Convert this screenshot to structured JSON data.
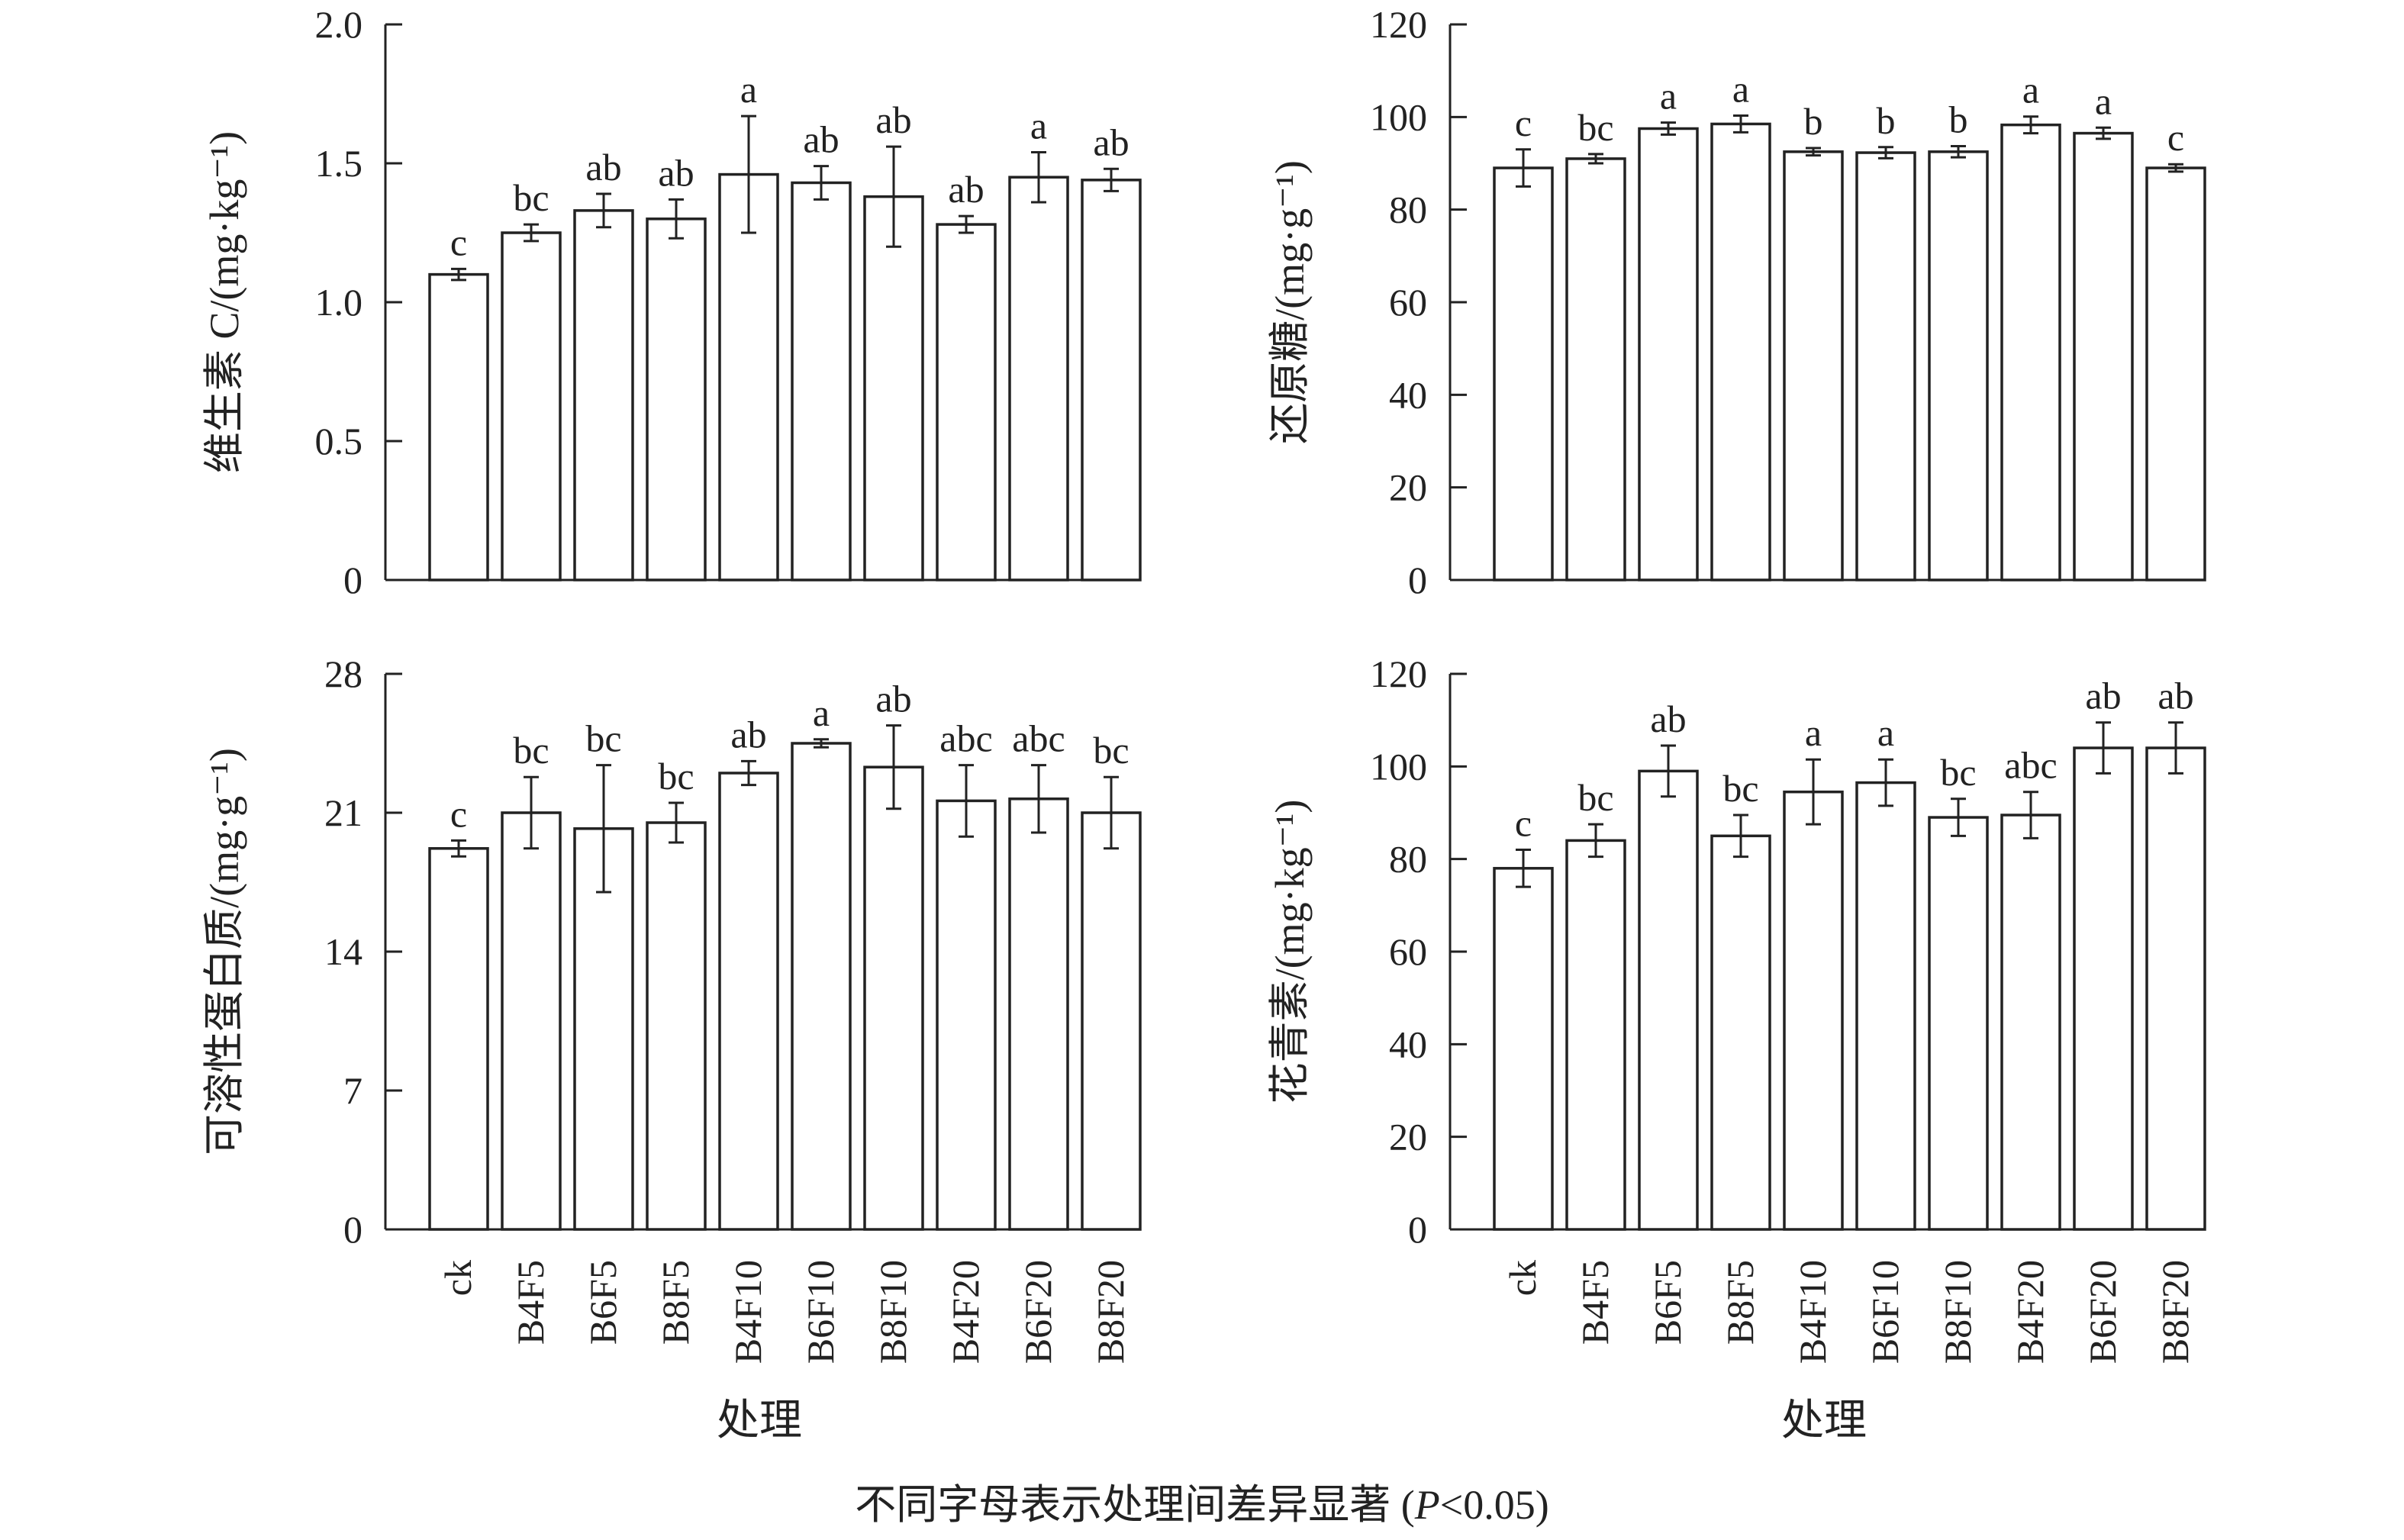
{
  "caption": "不同字母表示处理间差异显著 (P<0.05)",
  "chart_data": [
    {
      "type": "bar",
      "ylabel": "维生素 C/(mg·kg⁻¹)",
      "xlabel": "",
      "ylim": [
        0,
        2.0
      ],
      "yticks": [
        "0",
        "0.5",
        "1.0",
        "1.5",
        "2.0"
      ],
      "categories": [
        "ck",
        "B4F5",
        "B6F5",
        "B8F5",
        "B4F10",
        "B6F10",
        "B8F10",
        "B4F20",
        "B6F20",
        "B8F20"
      ],
      "values": [
        1.1,
        1.25,
        1.33,
        1.3,
        1.46,
        1.43,
        1.38,
        1.28,
        1.45,
        1.44
      ],
      "errors": [
        0.02,
        0.03,
        0.06,
        0.07,
        0.21,
        0.06,
        0.18,
        0.03,
        0.09,
        0.04
      ],
      "letters": [
        "c",
        "bc",
        "ab",
        "ab",
        "a",
        "ab",
        "ab",
        "ab",
        "a",
        "ab"
      ],
      "show_xticks": false
    },
    {
      "type": "bar",
      "ylabel": "还原糖/(mg·g⁻¹)",
      "xlabel": "",
      "ylim": [
        0,
        120
      ],
      "yticks": [
        "0",
        "20",
        "40",
        "60",
        "80",
        "100",
        "120"
      ],
      "categories": [
        "ck",
        "B4F5",
        "B6F5",
        "B8F5",
        "B4F10",
        "B6F10",
        "B8F10",
        "B4F20",
        "B6F20",
        "B8F20"
      ],
      "values": [
        89,
        91,
        97.5,
        98.5,
        92.5,
        92.3,
        92.5,
        98.3,
        96.5,
        89
      ],
      "errors": [
        4,
        1,
        1.3,
        1.8,
        0.8,
        1.2,
        1.2,
        1.8,
        1.2,
        0.8
      ],
      "letters": [
        "c",
        "bc",
        "a",
        "a",
        "b",
        "b",
        "b",
        "a",
        "a",
        "c"
      ],
      "show_xticks": false
    },
    {
      "type": "bar",
      "ylabel": "可溶性蛋白质/(mg·g⁻¹)",
      "xlabel": "处理",
      "ylim": [
        0,
        28
      ],
      "yticks": [
        "0",
        "7",
        "14",
        "21",
        "28"
      ],
      "categories": [
        "ck",
        "B4F5",
        "B6F5",
        "B8F5",
        "B4F10",
        "B6F10",
        "B8F10",
        "B4F20",
        "B6F20",
        "B8F20"
      ],
      "values": [
        19.2,
        21.0,
        20.2,
        20.5,
        23.0,
        24.5,
        23.3,
        21.6,
        21.7,
        21.0
      ],
      "errors": [
        0.4,
        1.8,
        3.2,
        1.0,
        0.6,
        0.2,
        2.1,
        1.8,
        1.7,
        1.8
      ],
      "letters": [
        "c",
        "bc",
        "bc",
        "bc",
        "ab",
        "a",
        "ab",
        "abc",
        "abc",
        "bc"
      ],
      "show_xticks": true
    },
    {
      "type": "bar",
      "ylabel": "花青素/(mg·kg⁻¹)",
      "xlabel": "处理",
      "ylim": [
        0,
        120
      ],
      "yticks": [
        "0",
        "20",
        "40",
        "60",
        "80",
        "100",
        "120"
      ],
      "categories": [
        "ck",
        "B4F5",
        "B6F5",
        "B8F5",
        "B4F10",
        "B6F10",
        "B8F10",
        "B4F20",
        "B6F20",
        "B8F20"
      ],
      "values": [
        78,
        84,
        99,
        85,
        94.5,
        96.5,
        89,
        89.5,
        104,
        104
      ],
      "errors": [
        4,
        3.5,
        5.5,
        4.5,
        7,
        5,
        4,
        5,
        5.5,
        5.5
      ],
      "letters": [
        "c",
        "bc",
        "ab",
        "bc",
        "a",
        "a",
        "bc",
        "abc",
        "ab",
        "ab"
      ],
      "show_xticks": true
    }
  ]
}
